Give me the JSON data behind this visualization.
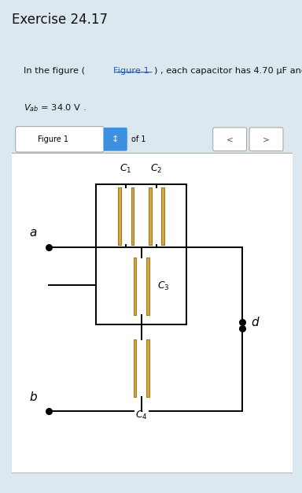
{
  "title": "Exercise 24.17",
  "figure_label": "Figure 1",
  "figure_label2": "of 1",
  "bg_color": "#dce8f0",
  "panel_bg": "#e8eef4",
  "box_bg": "#ffffff",
  "text_box_bg": "#ffffff",
  "cap_fill": "#d4a843",
  "cap_stroke": "#a07820",
  "wire_color": "#000000",
  "dot_color": "#000000",
  "link_color": "#2255cc"
}
